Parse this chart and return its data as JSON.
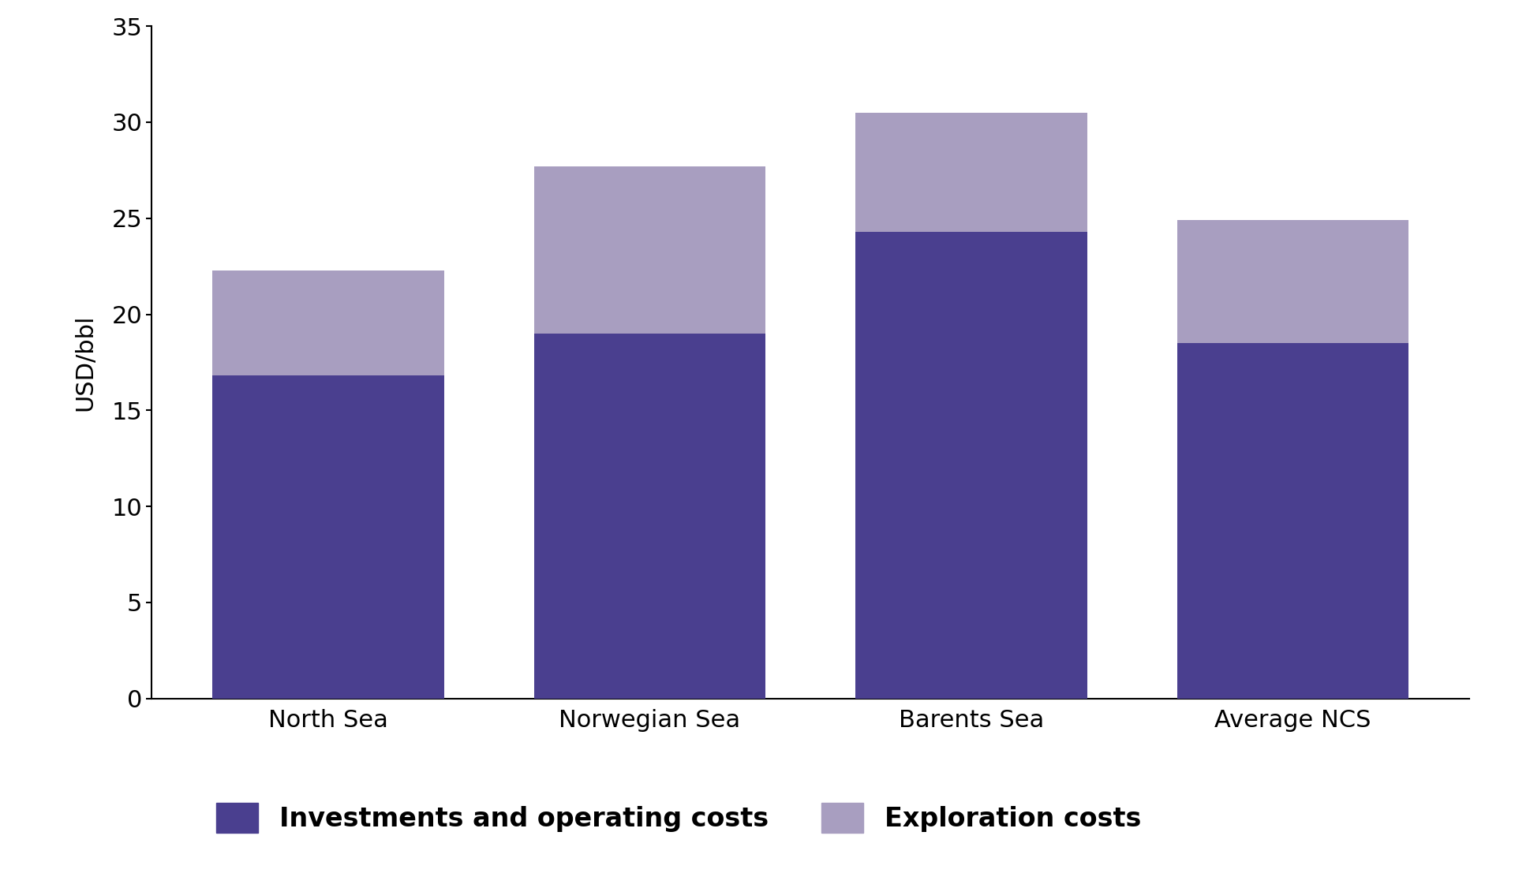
{
  "categories": [
    "North Sea",
    "Norwegian Sea",
    "Barents Sea",
    "Average NCS"
  ],
  "investments": [
    16.8,
    19.0,
    24.3,
    18.5
  ],
  "exploration": [
    5.5,
    8.7,
    6.2,
    6.4
  ],
  "color_investments": "#4a3f8f",
  "color_exploration": "#a89ec0",
  "ylabel": "USD/bbl",
  "ylim": [
    0,
    35
  ],
  "yticks": [
    0,
    5,
    10,
    15,
    20,
    25,
    30,
    35
  ],
  "legend_investments": "Investments and operating costs",
  "legend_exploration": "Exploration costs",
  "bar_width": 0.72,
  "figsize": [
    19.2,
    11.07
  ],
  "dpi": 100
}
